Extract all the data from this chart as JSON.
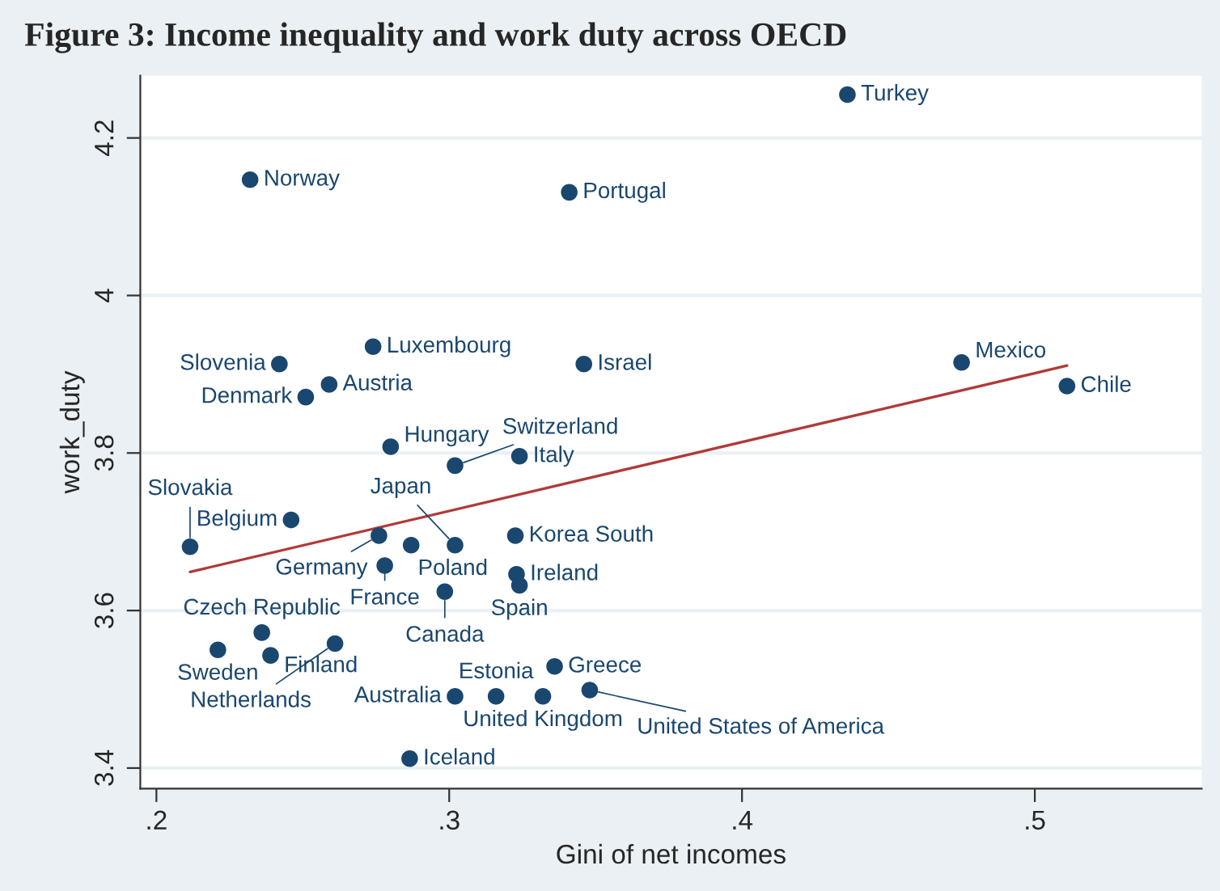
{
  "chart_data": {
    "type": "scatter",
    "title": "Figure 3: Income inequality and work duty across OECD",
    "xlabel": "Gini of net incomes",
    "ylabel": "work_duty",
    "xlim": [
      0.1945,
      0.557
    ],
    "ylim": [
      3.374,
      4.279
    ],
    "xticks": [
      {
        "value": 0.2,
        "label": ".2"
      },
      {
        "value": 0.3,
        "label": ".3"
      },
      {
        "value": 0.4,
        "label": ".4"
      },
      {
        "value": 0.5,
        "label": ".5"
      }
    ],
    "yticks": [
      3.4,
      3.6,
      3.8,
      4,
      4.2
    ],
    "grid": "y",
    "series": [
      {
        "marker": "circle",
        "color": "#1a476f",
        "x": [
          0.436,
          0.232,
          0.341,
          0.274,
          0.242,
          0.346,
          0.259,
          0.251,
          0.475,
          0.511,
          0.28,
          0.324,
          0.302,
          0.246,
          0.2115,
          0.276,
          0.287,
          0.302,
          0.3226,
          0.278,
          0.323,
          0.324,
          0.2985,
          0.236,
          0.261,
          0.221,
          0.239,
          0.336,
          0.302,
          0.316,
          0.332,
          0.348,
          0.2865
        ],
        "values": [
          4.255,
          4.147,
          4.131,
          3.935,
          3.913,
          3.913,
          3.887,
          3.871,
          3.915,
          3.885,
          3.808,
          3.796,
          3.784,
          3.715,
          3.681,
          3.695,
          3.683,
          3.683,
          3.695,
          3.657,
          3.646,
          3.632,
          3.624,
          3.572,
          3.558,
          3.55,
          3.543,
          3.529,
          3.491,
          3.491,
          3.491,
          3.499,
          3.412
        ]
      },
      {
        "type": "line",
        "marker": "none",
        "color": "#b03a3a",
        "x": [
          0.2115,
          0.511
        ],
        "values": [
          3.649,
          3.911
        ]
      }
    ],
    "annotations": [
      {
        "text": "Turkey",
        "x": 0.436,
        "y": 4.255
      },
      {
        "text": "Norway",
        "x": 0.232,
        "y": 4.147
      },
      {
        "text": "Portugal",
        "x": 0.341,
        "y": 4.131
      },
      {
        "text": "Luxembourg",
        "x": 0.274,
        "y": 3.935
      },
      {
        "text": "Slovenia",
        "x": 0.242,
        "y": 3.913
      },
      {
        "text": "Israel",
        "x": 0.346,
        "y": 3.913
      },
      {
        "text": "Austria",
        "x": 0.259,
        "y": 3.887
      },
      {
        "text": "Denmark",
        "x": 0.251,
        "y": 3.871
      },
      {
        "text": "Mexico",
        "x": 0.475,
        "y": 3.915
      },
      {
        "text": "Chile",
        "x": 0.511,
        "y": 3.885
      },
      {
        "text": "Hungary",
        "x": 0.28,
        "y": 3.808
      },
      {
        "text": "Italy",
        "x": 0.324,
        "y": 3.796
      },
      {
        "text": "Switzerland",
        "x": 0.302,
        "y": 3.784
      },
      {
        "text": "Belgium",
        "x": 0.246,
        "y": 3.715
      },
      {
        "text": "Slovakia",
        "x": 0.2115,
        "y": 3.681
      },
      {
        "text": "Germany",
        "x": 0.276,
        "y": 3.695
      },
      {
        "text": "Poland",
        "x": 0.287,
        "y": 3.683
      },
      {
        "text": "Japan",
        "x": 0.302,
        "y": 3.683
      },
      {
        "text": "Korea South",
        "x": 0.3226,
        "y": 3.695
      },
      {
        "text": "France",
        "x": 0.278,
        "y": 3.657
      },
      {
        "text": "Ireland",
        "x": 0.323,
        "y": 3.646
      },
      {
        "text": "Spain",
        "x": 0.324,
        "y": 3.632
      },
      {
        "text": "Canada",
        "x": 0.2985,
        "y": 3.624
      },
      {
        "text": "Czech Republic",
        "x": 0.236,
        "y": 3.572
      },
      {
        "text": "Netherlands",
        "x": 0.261,
        "y": 3.558
      },
      {
        "text": "Sweden",
        "x": 0.221,
        "y": 3.55
      },
      {
        "text": "Finland",
        "x": 0.239,
        "y": 3.543
      },
      {
        "text": "Greece",
        "x": 0.336,
        "y": 3.529
      },
      {
        "text": "Australia",
        "x": 0.302,
        "y": 3.491
      },
      {
        "text": "Estonia",
        "x": 0.316,
        "y": 3.491
      },
      {
        "text": "United Kingdom",
        "x": 0.332,
        "y": 3.491
      },
      {
        "text": "United States of America",
        "x": 0.348,
        "y": 3.499
      },
      {
        "text": "Iceland",
        "x": 0.2865,
        "y": 3.412
      }
    ]
  }
}
